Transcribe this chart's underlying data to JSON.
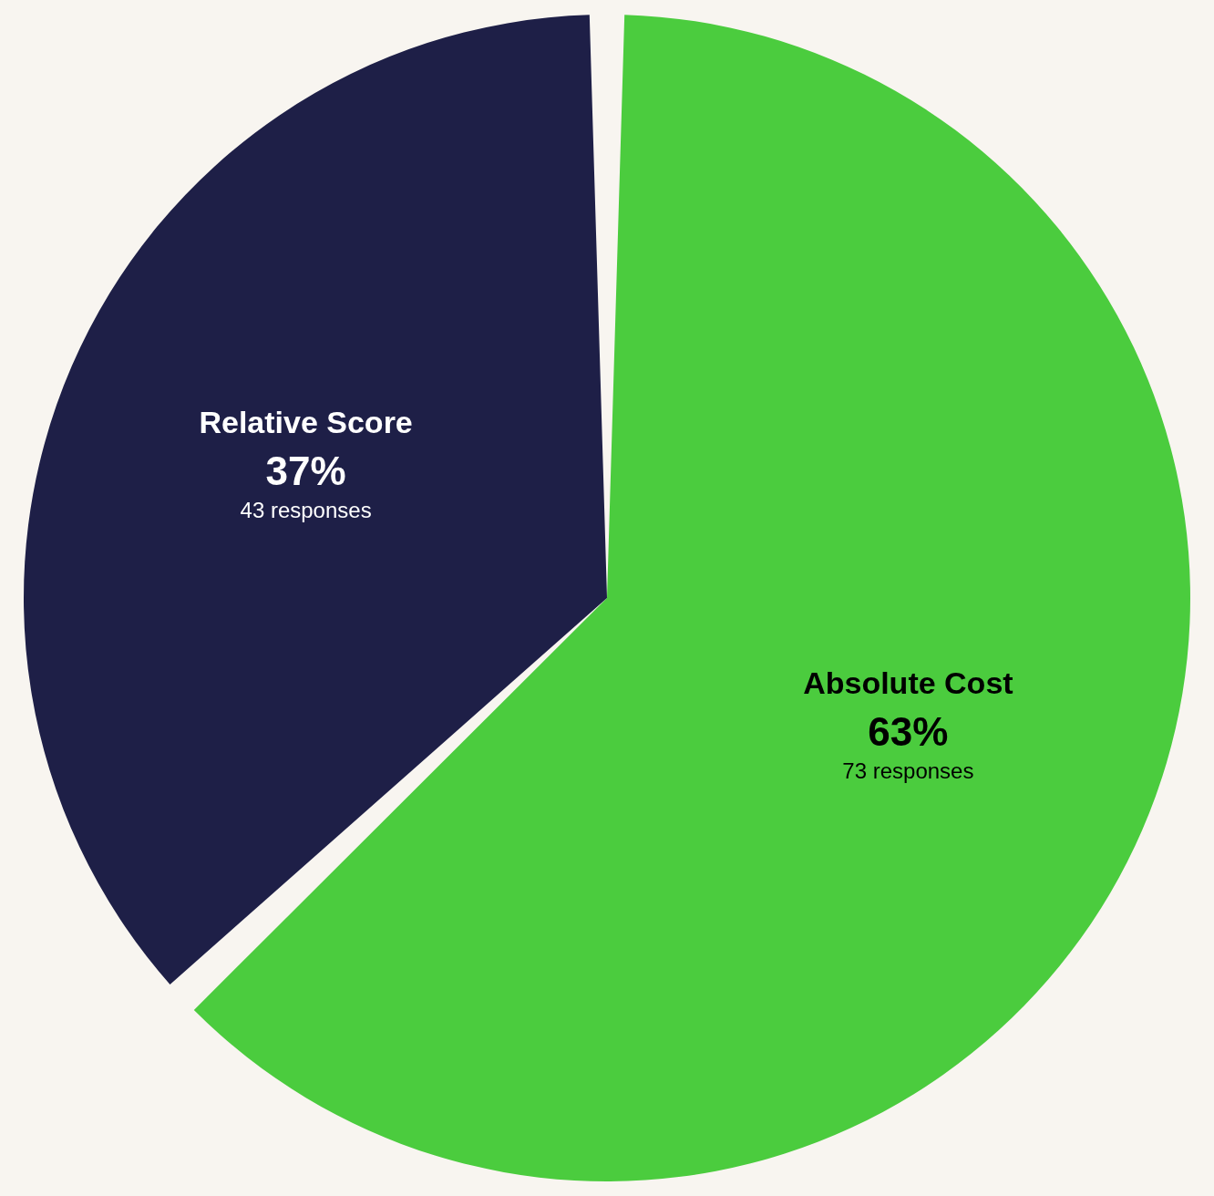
{
  "chart_data": {
    "type": "pie",
    "categories": [
      "Absolute Cost",
      "Relative Score"
    ],
    "values": [
      63,
      37
    ],
    "colors": [
      "#4bcc3e",
      "#1e1f47"
    ],
    "value_labels": [
      "63%",
      "37%"
    ],
    "annotations": [
      "73 responses",
      "43 responses"
    ]
  }
}
